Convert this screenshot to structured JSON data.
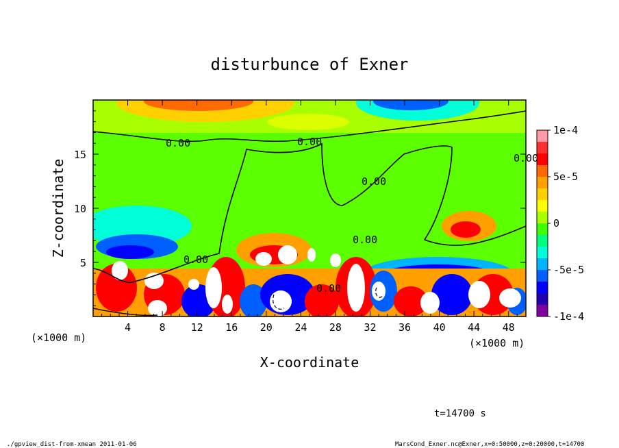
{
  "chart_data": {
    "type": "heatmap",
    "title": "disturbunce of Exner",
    "xlabel": "X-coordinate",
    "ylabel": "Z-coordinate",
    "x_unit_left": "(×1000 m)",
    "x_unit_right": "(×1000 m)",
    "xlim": [
      0,
      50
    ],
    "ylim": [
      0,
      20
    ],
    "x_ticks": [
      "4",
      "8",
      "12",
      "16",
      "20",
      "24",
      "28",
      "32",
      "36",
      "40",
      "44",
      "48"
    ],
    "y_ticks": [
      "5",
      "10",
      "15"
    ],
    "colorbar": {
      "range": [
        -0.0001,
        0.0001
      ],
      "tick_labels": [
        "1e-4",
        "5e-5",
        "0",
        "-5e-5",
        "-1e-4"
      ],
      "colors": [
        "#ff9aa6",
        "#ff3030",
        "#ff0000",
        "#ff6a00",
        "#ffa000",
        "#ffd000",
        "#ffff00",
        "#a8ff00",
        "#40ff00",
        "#00ff80",
        "#00ffd8",
        "#00b4ff",
        "#0060ff",
        "#0000ff",
        "#2000b0",
        "#8000a0"
      ]
    },
    "contour_labels": [
      "0.00",
      "0.00",
      "0.00",
      "0.00",
      "0.00",
      "0.00",
      "0.00"
    ],
    "time_label": "t=14700 s"
  },
  "footer": {
    "left": "./gpview_dist-from-xmean  2011-01-06",
    "right": "MarsCond_Exner.nc@Exner,x=0:50000,z=0:20000,t=14700"
  }
}
